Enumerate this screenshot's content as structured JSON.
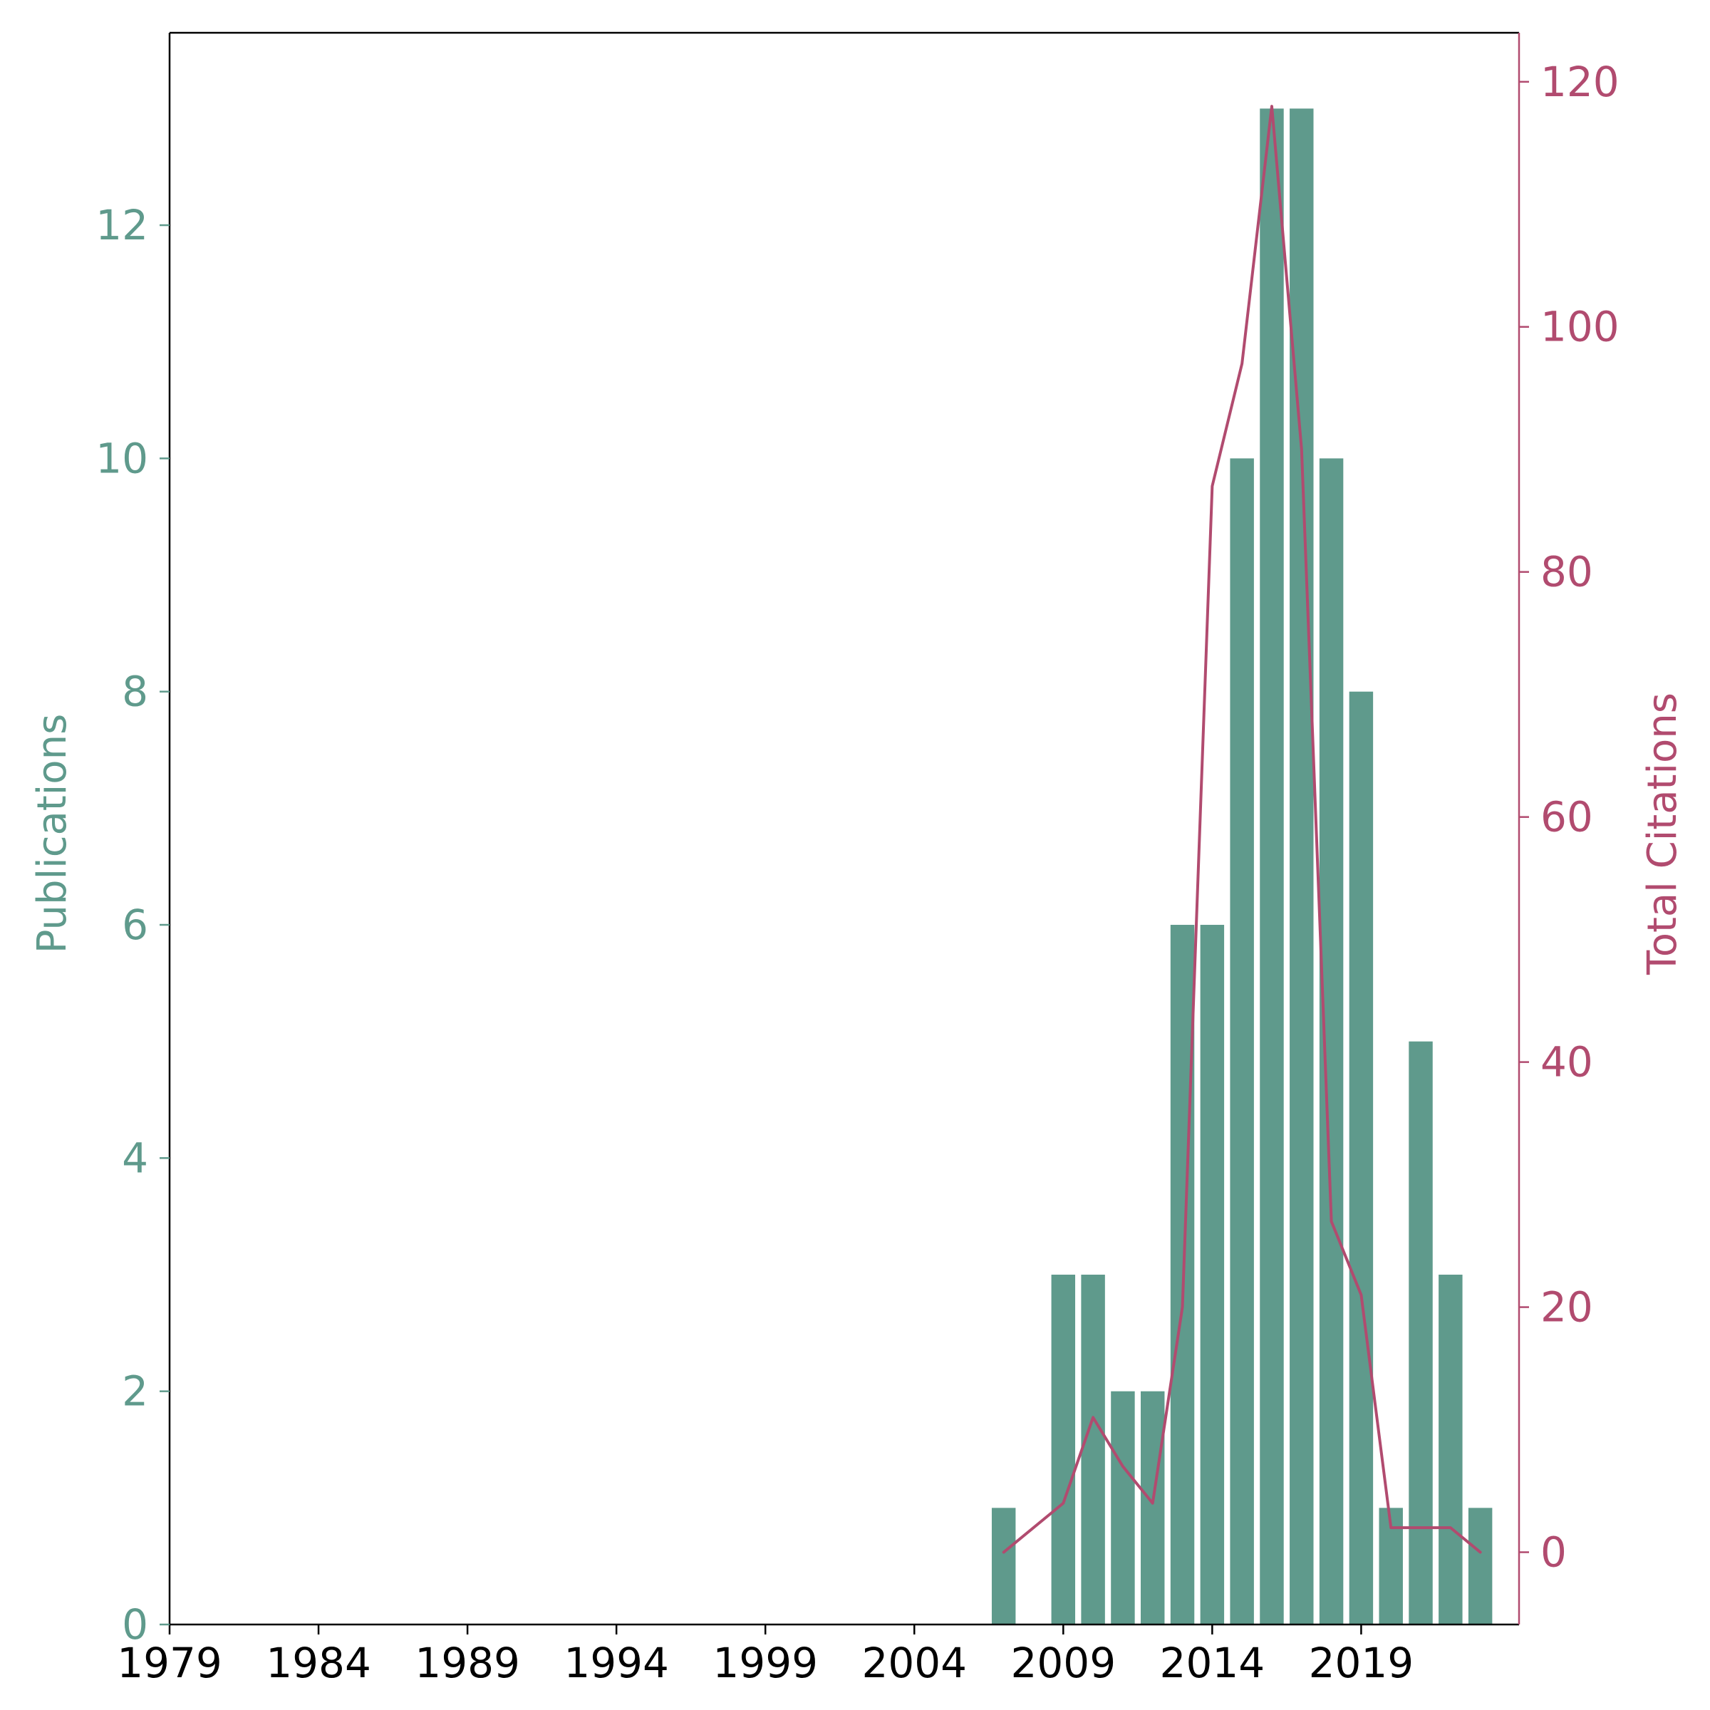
{
  "chart_data": {
    "type": "bar",
    "x": [
      2007,
      2009,
      2010,
      2011,
      2012,
      2013,
      2014,
      2015,
      2016,
      2017,
      2018,
      2019,
      2020,
      2021,
      2022,
      2023
    ],
    "x_ticks": [
      "1979",
      "1984",
      "1989",
      "1994",
      "1999",
      "2004",
      "2009",
      "2014",
      "2019"
    ],
    "xlim": [
      1979,
      2024.3
    ],
    "bar_series": {
      "name": "Publications",
      "values": [
        1,
        3,
        3,
        2,
        2,
        6,
        6,
        10,
        13,
        13,
        10,
        8,
        1,
        5,
        3,
        1
      ],
      "color": "#5f9a8c"
    },
    "line_series": {
      "name": "Total Citations",
      "x": [
        2007,
        2009,
        2010,
        2011,
        2012,
        2013,
        2014,
        2015,
        2016,
        2017,
        2018,
        2019,
        2020,
        2021,
        2022,
        2023
      ],
      "values": [
        0,
        4,
        11,
        7,
        4,
        20,
        87,
        97,
        118,
        90,
        27,
        21,
        2,
        2,
        2,
        0
      ],
      "color": "#b14b6f"
    },
    "ylabel_left": "Publications",
    "ylabel_right": "Total Citations",
    "y_left_ticks": [
      "0",
      "2",
      "4",
      "6",
      "8",
      "10",
      "12"
    ],
    "y_left_lim": [
      0,
      13.65
    ],
    "y_right_ticks": [
      "0",
      "20",
      "40",
      "60",
      "80",
      "100",
      "120"
    ],
    "y_right_lim": [
      -5.9,
      124
    ],
    "xlabel": "",
    "title": "",
    "grid": false,
    "left_axis_color": "#5f9a8c",
    "right_axis_color": "#b14b6f"
  }
}
